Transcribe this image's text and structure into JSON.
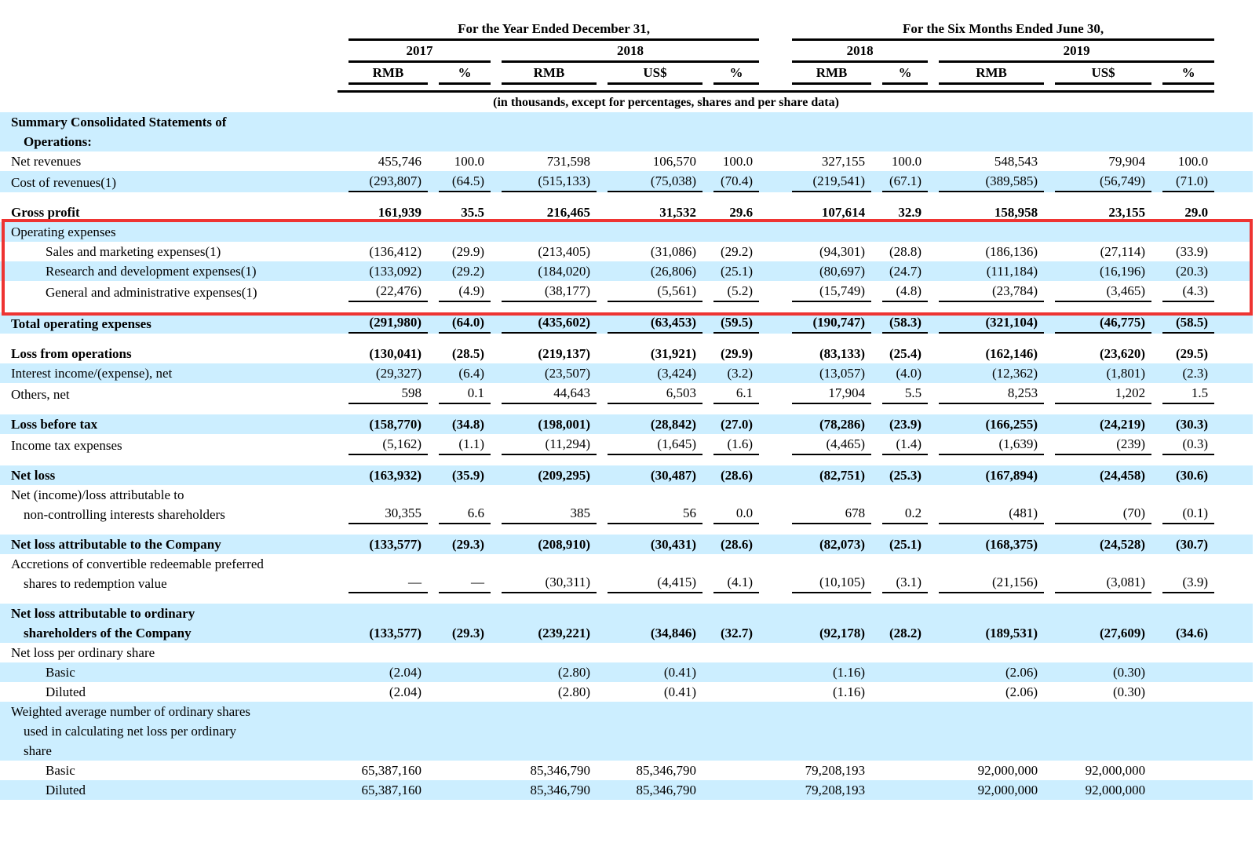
{
  "colors": {
    "stripe": "#cceeff",
    "highlight_border": "#ee3432"
  },
  "table": {
    "header": {
      "group1": "For the Year Ended December 31,",
      "group2": "For the Six Months Ended June 30,",
      "year1": "2017",
      "year2": "2018",
      "year3": "2018",
      "year4": "2019",
      "c1": "RMB",
      "c2": "%",
      "c3": "RMB",
      "c4": "US$",
      "c5": "%",
      "c6": "RMB",
      "c7": "%",
      "c8": "RMB",
      "c9": "US$",
      "c10": "%",
      "note": "(in thousands, except for percentages, shares and per share data)"
    },
    "rows": [
      {
        "label": [
          "Summary Consolidated Statements of",
          "Operations:"
        ],
        "bold": true,
        "stripe": true,
        "values": null
      },
      {
        "label": "Net revenues",
        "values": [
          "455,746",
          "100.0",
          "731,598",
          "106,570",
          "100.0",
          "327,155",
          "100.0",
          "548,543",
          "79,904",
          "100.0"
        ]
      },
      {
        "label": "Cost of revenues(1)",
        "stripe": true,
        "rule": true,
        "spacer": true,
        "values": [
          "(293,807)",
          "(64.5)",
          "(515,133)",
          "(75,038)",
          "(70.4)",
          "(219,541)",
          "(67.1)",
          "(389,585)",
          "(56,749)",
          "(71.0)"
        ]
      },
      {
        "label": "Gross profit",
        "bold": true,
        "values": [
          "161,939",
          "35.5",
          "216,465",
          "31,532",
          "29.6",
          "107,614",
          "32.9",
          "158,958",
          "23,155",
          "29.0"
        ]
      },
      {
        "label": "Operating expenses",
        "stripe": true,
        "boxed": true,
        "values": null
      },
      {
        "label": "Sales and marketing expenses(1)",
        "indent": 1,
        "boxed": true,
        "values": [
          "(136,412)",
          "(29.9)",
          "(213,405)",
          "(31,086)",
          "(29.2)",
          "(94,301)",
          "(28.8)",
          "(186,136)",
          "(27,114)",
          "(33.9)"
        ]
      },
      {
        "label": "Research and development expenses(1)",
        "indent": 1,
        "stripe": true,
        "boxed": true,
        "values": [
          "(133,092)",
          "(29.2)",
          "(184,020)",
          "(26,806)",
          "(25.1)",
          "(80,697)",
          "(24.7)",
          "(111,184)",
          "(16,196)",
          "(20.3)"
        ]
      },
      {
        "label": "General and administrative expenses(1)",
        "indent": 1,
        "rule": true,
        "boxed": true,
        "spacer": true,
        "spacer_boxed": true,
        "values": [
          "(22,476)",
          "(4.9)",
          "(38,177)",
          "(5,561)",
          "(5.2)",
          "(15,749)",
          "(4.8)",
          "(23,784)",
          "(3,465)",
          "(4.3)"
        ]
      },
      {
        "label": "Total operating expenses",
        "bold": true,
        "stripe": true,
        "rule": true,
        "spacer": true,
        "values": [
          "(291,980)",
          "(64.0)",
          "(435,602)",
          "(63,453)",
          "(59.5)",
          "(190,747)",
          "(58.3)",
          "(321,104)",
          "(46,775)",
          "(58.5)"
        ]
      },
      {
        "label": "Loss from operations",
        "bold": true,
        "values": [
          "(130,041)",
          "(28.5)",
          "(219,137)",
          "(31,921)",
          "(29.9)",
          "(83,133)",
          "(25.4)",
          "(162,146)",
          "(23,620)",
          "(29.5)"
        ]
      },
      {
        "label": "Interest income/(expense), net",
        "stripe": true,
        "values": [
          "(29,327)",
          "(6.4)",
          "(23,507)",
          "(3,424)",
          "(3.2)",
          "(13,057)",
          "(4.0)",
          "(12,362)",
          "(1,801)",
          "(2.3)"
        ]
      },
      {
        "label": "Others, net",
        "rule": true,
        "spacer": true,
        "values": [
          "598",
          "0.1",
          "44,643",
          "6,503",
          "6.1",
          "17,904",
          "5.5",
          "8,253",
          "1,202",
          "1.5"
        ]
      },
      {
        "label": "Loss before tax",
        "bold": true,
        "stripe": true,
        "values": [
          "(158,770)",
          "(34.8)",
          "(198,001)",
          "(28,842)",
          "(27.0)",
          "(78,286)",
          "(23.9)",
          "(166,255)",
          "(24,219)",
          "(30.3)"
        ]
      },
      {
        "label": "Income tax expenses",
        "rule": true,
        "spacer": true,
        "values": [
          "(5,162)",
          "(1.1)",
          "(11,294)",
          "(1,645)",
          "(1.6)",
          "(4,465)",
          "(1.4)",
          "(1,639)",
          "(239)",
          "(0.3)"
        ]
      },
      {
        "label": "Net loss",
        "bold": true,
        "stripe": true,
        "values": [
          "(163,932)",
          "(35.9)",
          "(209,295)",
          "(30,487)",
          "(28.6)",
          "(82,751)",
          "(25.3)",
          "(167,894)",
          "(24,458)",
          "(30.6)"
        ]
      },
      {
        "label": [
          "Net (income)/loss attributable to",
          "non-controlling interests shareholders"
        ],
        "rule": true,
        "spacer": true,
        "values": [
          "30,355",
          "6.6",
          "385",
          "56",
          "0.0",
          "678",
          "0.2",
          "(481)",
          "(70)",
          "(0.1)"
        ]
      },
      {
        "label": "Net loss attributable to the Company",
        "bold": true,
        "stripe": true,
        "values": [
          "(133,577)",
          "(29.3)",
          "(208,910)",
          "(30,431)",
          "(28.6)",
          "(82,073)",
          "(25.1)",
          "(168,375)",
          "(24,528)",
          "(30.7)"
        ]
      },
      {
        "label": [
          "Accretions of convertible redeemable preferred",
          "shares to redemption value"
        ],
        "rule": true,
        "spacer": true,
        "values": [
          "—",
          "—",
          "(30,311)",
          "(4,415)",
          "(4.1)",
          "(10,105)",
          "(3.1)",
          "(21,156)",
          "(3,081)",
          "(3.9)"
        ]
      },
      {
        "label": [
          "Net loss attributable to ordinary",
          "shareholders of the Company"
        ],
        "bold": true,
        "stripe": true,
        "values": [
          "(133,577)",
          "(29.3)",
          "(239,221)",
          "(34,846)",
          "(32.7)",
          "(92,178)",
          "(28.2)",
          "(189,531)",
          "(27,609)",
          "(34.6)"
        ]
      },
      {
        "label": "Net loss per ordinary share",
        "values": null
      },
      {
        "label": "Basic",
        "indent": 1,
        "stripe": true,
        "values": [
          "(2.04)",
          "",
          "(2.80)",
          "(0.41)",
          "",
          "(1.16)",
          "",
          "(2.06)",
          "(0.30)",
          ""
        ]
      },
      {
        "label": "Diluted",
        "indent": 1,
        "values": [
          "(2.04)",
          "",
          "(2.80)",
          "(0.41)",
          "",
          "(1.16)",
          "",
          "(2.06)",
          "(0.30)",
          ""
        ]
      },
      {
        "label": [
          "Weighted average number of ordinary shares",
          "used in calculating net loss per ordinary",
          "share"
        ],
        "stripe": true,
        "values": null
      },
      {
        "label": "Basic",
        "indent": 1,
        "values": [
          "65,387,160",
          "",
          "85,346,790",
          "85,346,790",
          "",
          "79,208,193",
          "",
          "92,000,000",
          "92,000,000",
          ""
        ]
      },
      {
        "label": "Diluted",
        "indent": 1,
        "stripe": true,
        "values": [
          "65,387,160",
          "",
          "85,346,790",
          "85,346,790",
          "",
          "79,208,193",
          "",
          "92,000,000",
          "92,000,000",
          ""
        ]
      }
    ]
  }
}
